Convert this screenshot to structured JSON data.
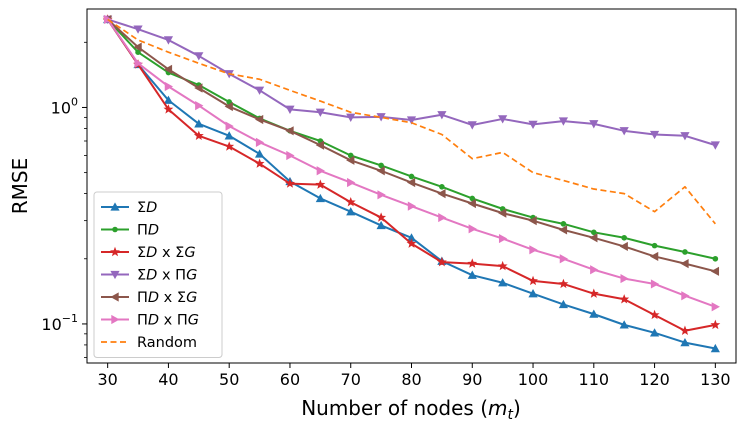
{
  "chart_data": {
    "type": "line",
    "title": "",
    "xlabel": "Number of nodes (m_t)",
    "xlabel_main": "Number of nodes (",
    "xlabel_var": "m",
    "xlabel_sub": "t",
    "xlabel_close": ")",
    "ylabel": "RMSE",
    "yscale": "log",
    "xlim": [
      26.6,
      133.4
    ],
    "ylim": [
      0.066,
      2.85
    ],
    "xticks": [
      30,
      40,
      50,
      60,
      70,
      80,
      90,
      100,
      110,
      120,
      130
    ],
    "yticks": [
      {
        "value": 1.0,
        "base": "10",
        "exp": "0"
      },
      {
        "value": 0.1,
        "base": "10",
        "exp": "−1"
      }
    ],
    "legend_position": "lower-left",
    "x": [
      30,
      35,
      40,
      45,
      50,
      55,
      60,
      65,
      70,
      75,
      80,
      85,
      90,
      95,
      100,
      105,
      110,
      115,
      120,
      125,
      130
    ],
    "series": [
      {
        "name": "ΣD",
        "label": {
          "op": "Σ",
          "v1": "D",
          "sep": "",
          "op2": "",
          "v2": ""
        },
        "color": "#1f77b4",
        "marker": "triangle-up",
        "dashed": false,
        "values": [
          2.55,
          1.58,
          1.08,
          0.84,
          0.74,
          0.61,
          0.455,
          0.38,
          0.33,
          0.285,
          0.25,
          0.195,
          0.168,
          0.155,
          0.138,
          0.123,
          0.111,
          0.099,
          0.091,
          0.082,
          0.077
        ]
      },
      {
        "name": "ΠD",
        "label": {
          "op": "Π",
          "v1": "D",
          "sep": "",
          "op2": "",
          "v2": ""
        },
        "color": "#2ca02c",
        "marker": "circle",
        "dashed": false,
        "values": [
          2.55,
          1.8,
          1.45,
          1.27,
          1.06,
          0.89,
          0.78,
          0.7,
          0.6,
          0.54,
          0.48,
          0.43,
          0.38,
          0.34,
          0.31,
          0.29,
          0.265,
          0.25,
          0.23,
          0.215,
          0.2
        ]
      },
      {
        "name": "ΣD x ΣG",
        "label": {
          "op": "Σ",
          "v1": "D",
          "sep": " x ",
          "op2": "Σ",
          "v2": "G"
        },
        "color": "#d62728",
        "marker": "star",
        "dashed": false,
        "values": [
          2.55,
          1.58,
          0.98,
          0.74,
          0.66,
          0.55,
          0.445,
          0.44,
          0.365,
          0.31,
          0.235,
          0.193,
          0.19,
          0.185,
          0.158,
          0.153,
          0.138,
          0.13,
          0.11,
          0.093,
          0.099
        ]
      },
      {
        "name": "ΣD x ΠG",
        "label": {
          "op": "Σ",
          "v1": "D",
          "sep": " x ",
          "op2": "Π",
          "v2": "G"
        },
        "color": "#9467bd",
        "marker": "triangle-down",
        "dashed": false,
        "values": [
          2.55,
          2.3,
          2.05,
          1.73,
          1.43,
          1.2,
          0.98,
          0.95,
          0.9,
          0.905,
          0.875,
          0.925,
          0.83,
          0.885,
          0.835,
          0.865,
          0.84,
          0.78,
          0.75,
          0.74,
          0.67
        ]
      },
      {
        "name": "ΠD x ΣG",
        "label": {
          "op": "Π",
          "v1": "D",
          "sep": " x  ",
          "op2": "Σ",
          "v2": "G"
        },
        "color": "#8c564b",
        "marker": "triangle-left",
        "dashed": false,
        "values": [
          2.55,
          1.9,
          1.5,
          1.23,
          1.01,
          0.88,
          0.78,
          0.67,
          0.57,
          0.51,
          0.45,
          0.4,
          0.36,
          0.325,
          0.3,
          0.272,
          0.25,
          0.228,
          0.205,
          0.19,
          0.175
        ]
      },
      {
        "name": "ΠD x ΠG",
        "label": {
          "op": "Π",
          "v1": "D",
          "sep": " x ",
          "op2": "Π",
          "v2": "G"
        },
        "color": "#e377c2",
        "marker": "triangle-right",
        "dashed": false,
        "values": [
          2.55,
          1.6,
          1.25,
          1.02,
          0.82,
          0.69,
          0.6,
          0.51,
          0.45,
          0.395,
          0.35,
          0.31,
          0.275,
          0.248,
          0.22,
          0.2,
          0.178,
          0.162,
          0.153,
          0.135,
          0.12
        ]
      },
      {
        "name": "Random",
        "label": {
          "op": "",
          "v1": "",
          "sep": "Random",
          "op2": "",
          "v2": ""
        },
        "color": "#ff7f0e",
        "marker": "none",
        "dashed": true,
        "values": [
          2.55,
          2.05,
          1.8,
          1.6,
          1.43,
          1.35,
          1.2,
          1.07,
          0.95,
          0.9,
          0.85,
          0.75,
          0.58,
          0.62,
          0.5,
          0.46,
          0.42,
          0.4,
          0.33,
          0.43,
          0.29
        ]
      }
    ]
  }
}
